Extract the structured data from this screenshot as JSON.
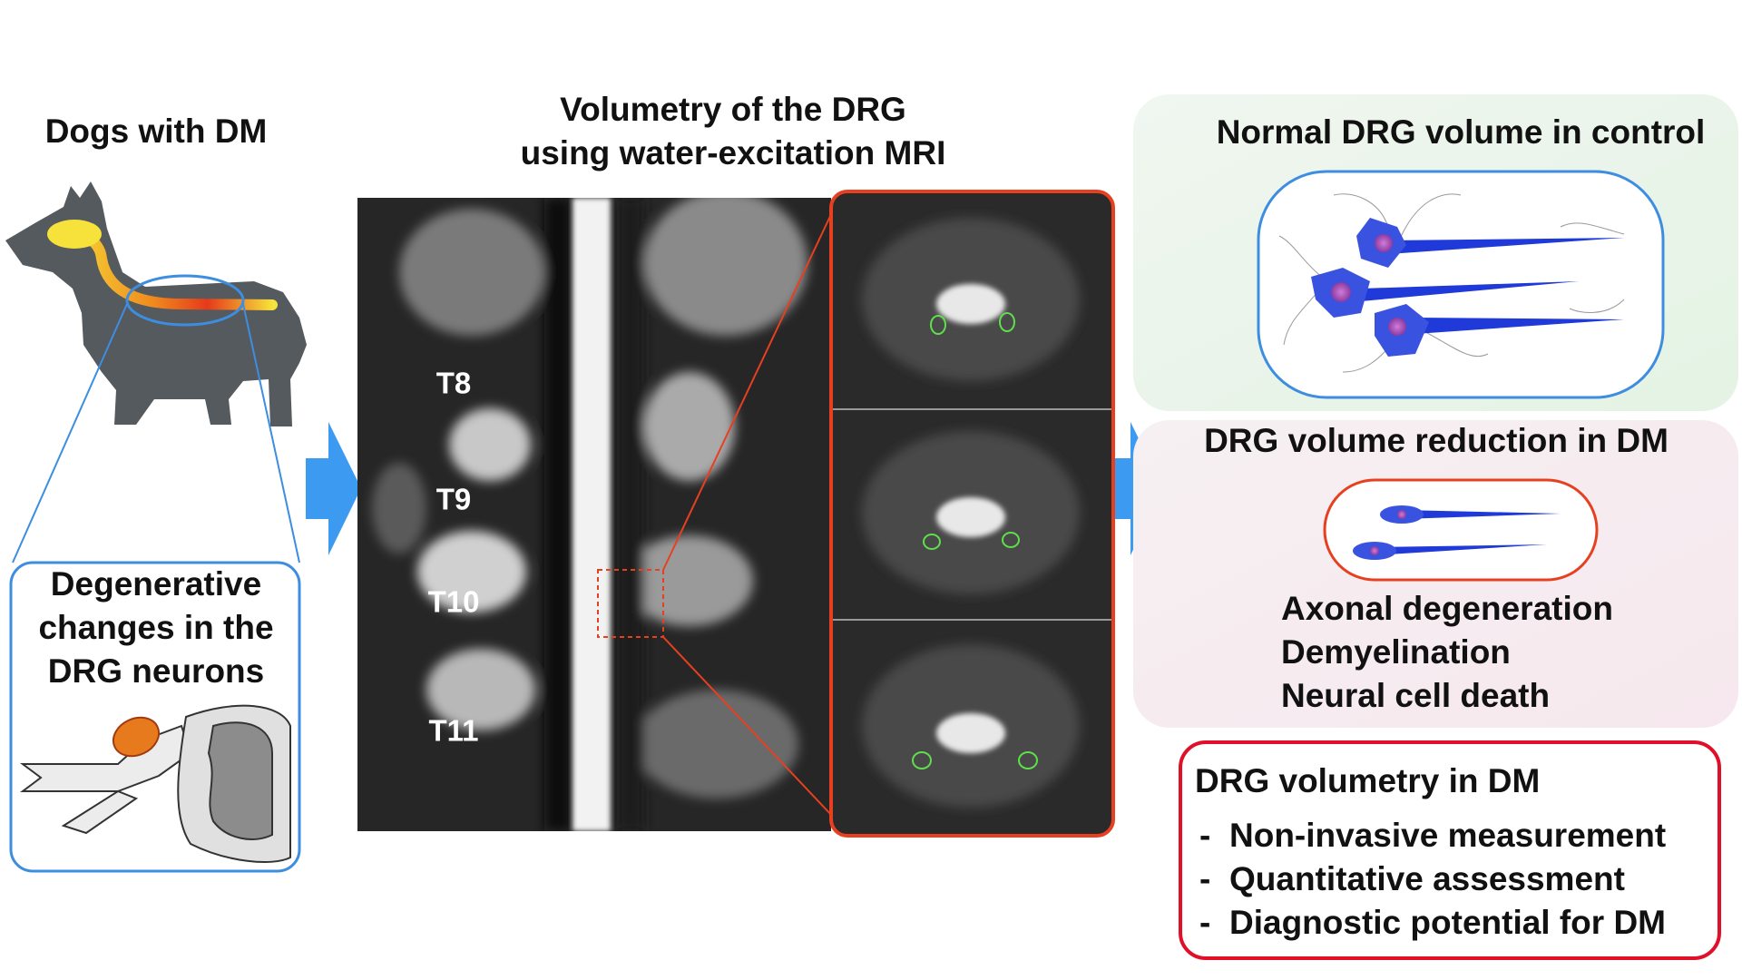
{
  "left": {
    "title": "Dogs with DM",
    "box": [
      "Degenerative",
      "changes in the",
      "DRG neurons"
    ]
  },
  "center": {
    "title": [
      "Volumetry of the DRG",
      "using water-excitation MRI"
    ],
    "vertebrae": [
      "T8",
      "T9",
      "T10",
      "T11"
    ]
  },
  "right": {
    "control": {
      "title": "Normal DRG volume in control"
    },
    "dm": {
      "title": "DRG volume reduction in DM",
      "findings": [
        "Axonal degeneration",
        "Demyelination",
        "Neural cell death"
      ]
    },
    "summary": {
      "title": "DRG volumetry in DM",
      "marker": "-",
      "bullets": [
        "Non-invasive measurement",
        "Quantitative assessment",
        "Diagnostic potential for DM"
      ]
    }
  }
}
